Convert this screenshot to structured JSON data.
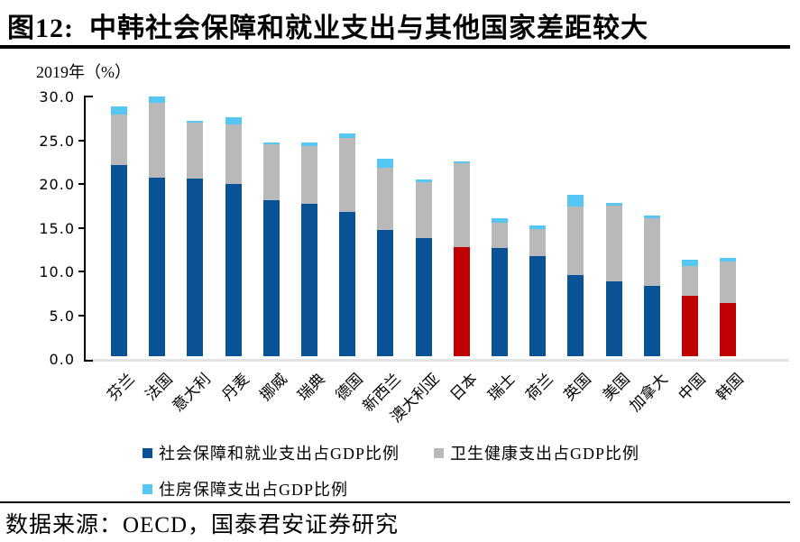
{
  "title": "图12:  中韩社会保障和就业支出与其他国家差距较大",
  "axis_note": "2019年（%）",
  "source": "数据来源：OECD，国泰君安证券研究",
  "colors": {
    "social_default": "#0A5296",
    "social_highlight": "#C00000",
    "health": "#B9B9B9",
    "housing": "#55C7F2",
    "axis": "#000000",
    "baseline": "#E3E3E3"
  },
  "legend": [
    {
      "label": "社会保障和就业支出占GDP比例",
      "color_key": "social_default"
    },
    {
      "label": "卫生健康支出占GDP比例",
      "color_key": "health"
    },
    {
      "label": "住房保障支出占GDP比例",
      "color_key": "housing"
    }
  ],
  "chart_data": {
    "type": "bar",
    "stacked": true,
    "title": "中韩社会保障和就业支出与其他国家差距较大",
    "subtitle": "2019年（%）",
    "categories": [
      "芬兰",
      "法国",
      "意大利",
      "丹麦",
      "挪威",
      "瑞典",
      "德国",
      "新西兰",
      "澳大利亚",
      "日本",
      "瑞士",
      "荷兰",
      "英国",
      "美国",
      "加拿大",
      "中国",
      "韩国"
    ],
    "series": [
      {
        "name": "社会保障和就业支出占GDP比例",
        "values": [
          21.9,
          20.4,
          20.3,
          19.7,
          17.8,
          17.4,
          16.5,
          14.4,
          13.5,
          12.5,
          12.4,
          11.4,
          9.3,
          8.6,
          8.0,
          6.9,
          6.1
        ]
      },
      {
        "name": "卫生健康支出占GDP比例",
        "values": [
          5.7,
          8.6,
          6.4,
          6.8,
          6.4,
          6.6,
          8.5,
          7.2,
          6.4,
          9.6,
          2.9,
          3.1,
          7.8,
          8.6,
          7.8,
          3.4,
          4.7
        ]
      },
      {
        "name": "住房保障支出占GDP比例",
        "values": [
          1.0,
          0.7,
          0.2,
          0.8,
          0.2,
          0.4,
          0.5,
          1.0,
          0.3,
          0.2,
          0.5,
          0.4,
          1.4,
          0.3,
          0.3,
          0.7,
          0.4
        ]
      }
    ],
    "highlight_categories": [
      "日本",
      "中国",
      "韩国"
    ],
    "ylim": [
      0,
      30
    ],
    "yticks": [
      "30.0",
      "25.0",
      "20.0",
      "15.0",
      "10.0",
      "5.0",
      "0.0"
    ],
    "ytick_values": [
      30,
      25,
      20,
      15,
      10,
      5,
      0
    ],
    "grid": false,
    "legend_position": "bottom"
  }
}
